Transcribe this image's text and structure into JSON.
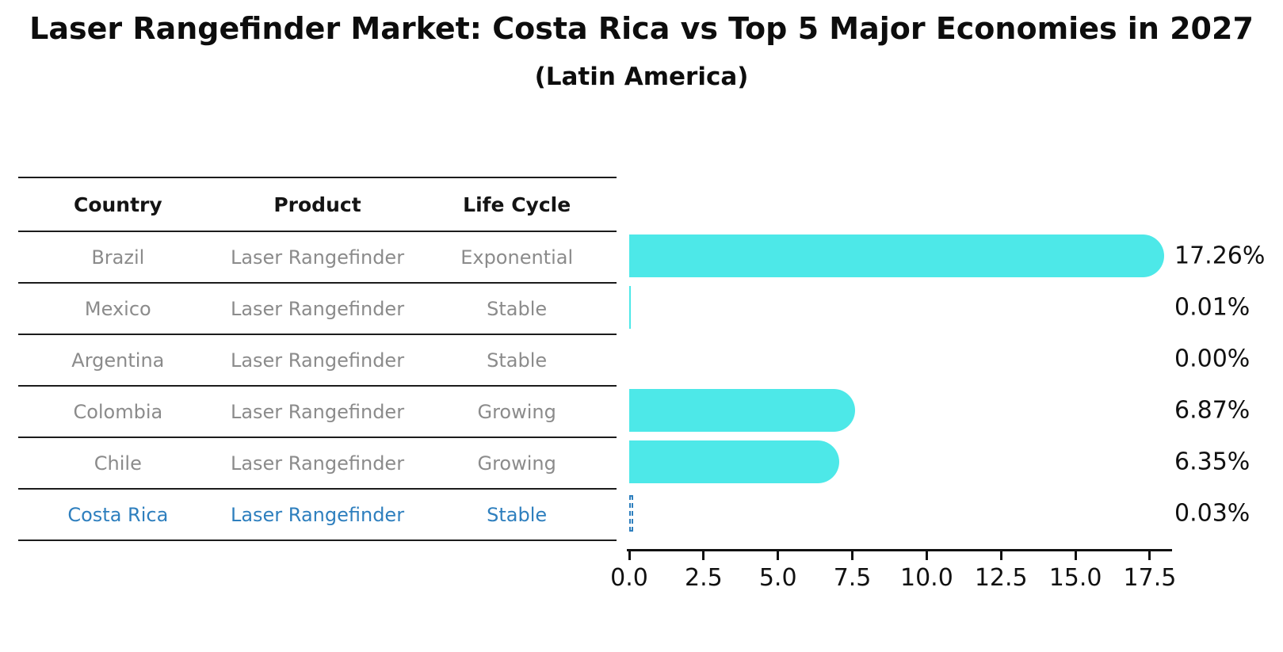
{
  "title": "Laser Rangefinder Market: Costa Rica vs Top 5 Major Economies in 2027",
  "subtitle": "(Latin America)",
  "table": {
    "headers": [
      "Country",
      "Product",
      "Life Cycle"
    ],
    "rows": [
      {
        "country": "Brazil",
        "product": "Laser Rangefinder",
        "life_cycle": "Exponential",
        "highlight": false
      },
      {
        "country": "Mexico",
        "product": "Laser Rangefinder",
        "life_cycle": "Stable",
        "highlight": false
      },
      {
        "country": "Argentina",
        "product": "Laser Rangefinder",
        "life_cycle": "Stable",
        "highlight": false
      },
      {
        "country": "Colombia",
        "product": "Laser Rangefinder",
        "life_cycle": "Growing",
        "highlight": false
      },
      {
        "country": "Chile",
        "product": "Laser Rangefinder",
        "life_cycle": "Growing",
        "highlight": false
      },
      {
        "country": "Costa Rica",
        "product": "Laser Rangefinder",
        "life_cycle": "Stable",
        "highlight": true
      }
    ]
  },
  "chart_data": {
    "type": "bar",
    "orientation": "horizontal",
    "title": "Laser Rangefinder Market: Costa Rica vs Top 5 Major Economies in 2027 (Latin America)",
    "xlabel": "",
    "ylabel": "",
    "categories": [
      "Brazil",
      "Mexico",
      "Argentina",
      "Colombia",
      "Chile",
      "Costa Rica"
    ],
    "values": [
      17.26,
      0.01,
      0.0,
      6.87,
      6.35,
      0.03
    ],
    "value_labels": [
      "17.26%",
      "0.01%",
      "0.00%",
      "6.87%",
      "6.35%",
      "0.03%"
    ],
    "xticks": [
      0.0,
      2.5,
      5.0,
      7.5,
      10.0,
      12.5,
      15.0,
      17.5
    ],
    "xtick_labels": [
      "0.0",
      "2.5",
      "5.0",
      "7.5",
      "10.0",
      "12.5",
      "15.0",
      "17.5"
    ],
    "xlim": [
      0,
      18.25
    ],
    "grid": false,
    "legend": false,
    "bar_color": "#4de8e8",
    "highlight_color": "#2e7fbe",
    "highlight_index": 5,
    "highlight_style": "dashed-outline",
    "text_color": "#111111",
    "muted_text_color": "#8b8b8b"
  }
}
